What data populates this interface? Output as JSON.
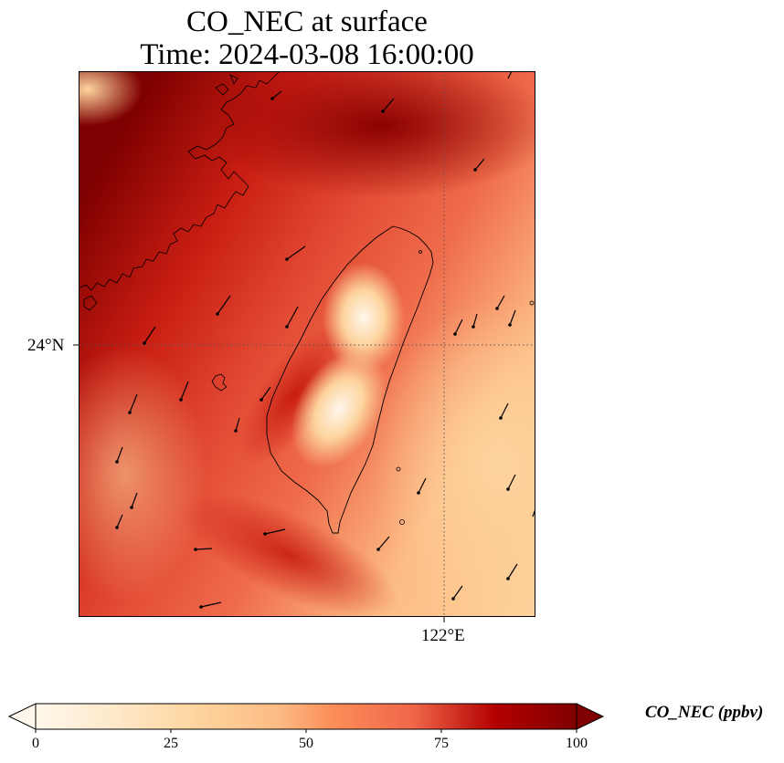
{
  "title": {
    "line1": "CO_NEC at surface",
    "line2": "Time: 2024-03-08 16:00:00"
  },
  "map": {
    "lat_tick_label": "24°N",
    "lon_tick_label": "122°E",
    "regions": [
      "Taiwan",
      "Fujian coast"
    ]
  },
  "colorbar": {
    "label": "CO_NEC (ppbv)",
    "ticks": [
      "0",
      "25",
      "50",
      "75",
      "100"
    ],
    "min": 0,
    "max": 100,
    "colormap": "OrRd",
    "extend": "both",
    "colors": [
      "#fff7ec",
      "#fdd49e",
      "#fc8d59",
      "#d7301f",
      "#b30000",
      "#7f0000"
    ]
  }
}
